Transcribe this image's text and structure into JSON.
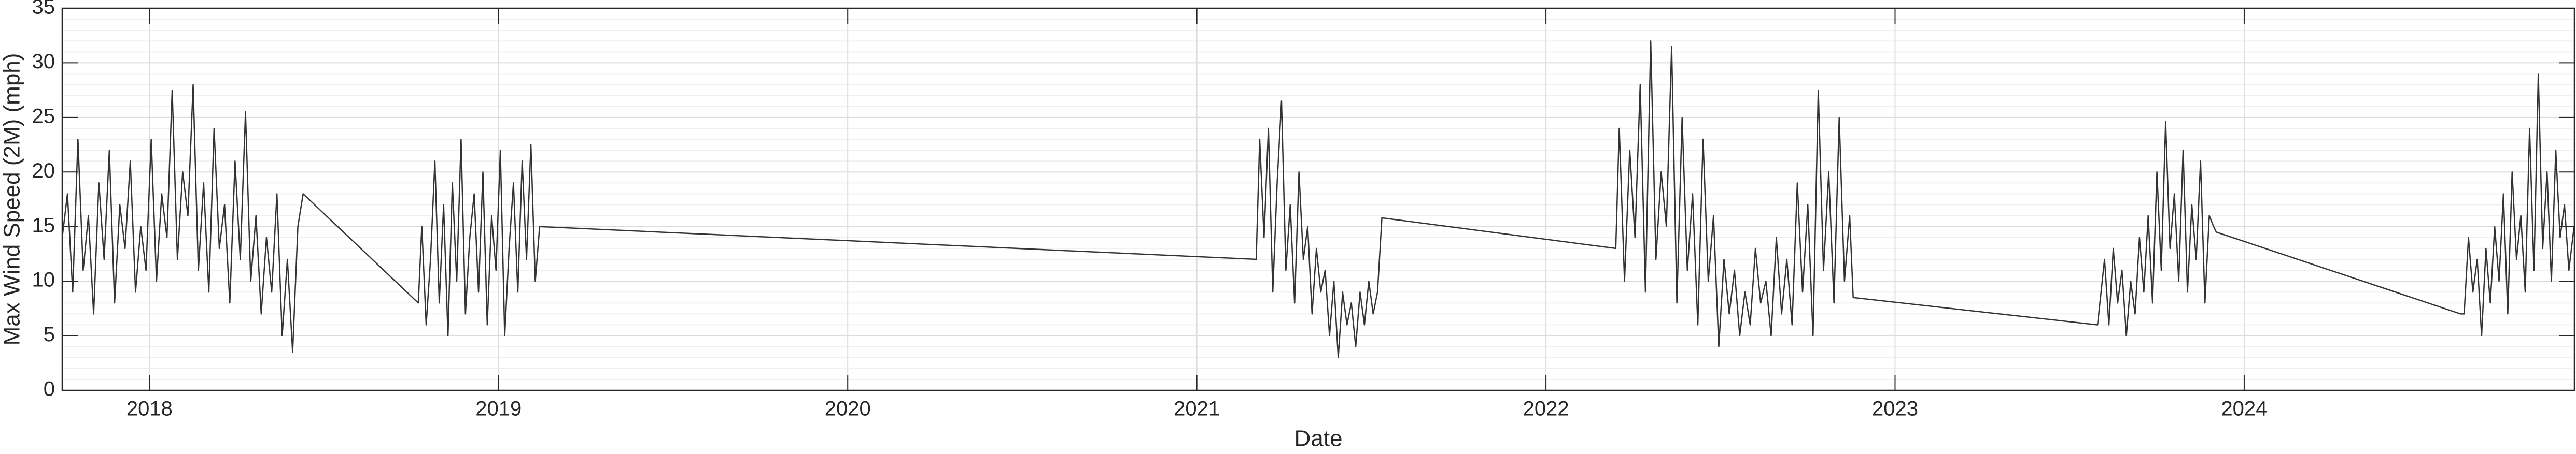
{
  "chart_data": {
    "type": "line",
    "xlabel": "Date",
    "ylabel": "Max Wind Speed (2M) (mph)",
    "color": "#333333",
    "x": [
      2017.75,
      2017.765,
      2017.78,
      2017.795,
      2017.81,
      2017.825,
      2017.84,
      2017.855,
      2017.87,
      2017.885,
      2017.9,
      2017.915,
      2017.93,
      2017.945,
      2017.96,
      2017.975,
      2017.99,
      2018.005,
      2018.02,
      2018.035,
      2018.05,
      2018.065,
      2018.08,
      2018.095,
      2018.11,
      2018.125,
      2018.14,
      2018.155,
      2018.17,
      2018.185,
      2018.2,
      2018.215,
      2018.23,
      2018.245,
      2018.26,
      2018.275,
      2018.29,
      2018.305,
      2018.32,
      2018.335,
      2018.35,
      2018.365,
      2018.38,
      2018.395,
      2018.41,
      2018.425,
      2018.44,
      2018.77,
      2018.78,
      2018.7925,
      2018.805,
      2018.8175,
      2018.83,
      2018.8425,
      2018.855,
      2018.8675,
      2018.88,
      2018.8925,
      2018.905,
      2018.9175,
      2018.93,
      2018.9425,
      2018.955,
      2018.9675,
      2018.98,
      2018.9925,
      2019.005,
      2019.0175,
      2019.03,
      2019.0425,
      2019.055,
      2019.0675,
      2019.08,
      2019.0925,
      2019.105,
      2019.1175,
      2021.17,
      2021.18,
      2021.1925,
      2021.205,
      2021.2175,
      2021.23,
      2021.2425,
      2021.255,
      2021.2675,
      2021.28,
      2021.2925,
      2021.305,
      2021.3175,
      2021.33,
      2021.3425,
      2021.355,
      2021.3675,
      2021.38,
      2021.3925,
      2021.405,
      2021.4175,
      2021.43,
      2021.4425,
      2021.455,
      2021.4675,
      2021.48,
      2021.4925,
      2021.505,
      2021.5175,
      2021.53,
      2022.2,
      2022.21,
      2022.225,
      2022.24,
      2022.255,
      2022.27,
      2022.285,
      2022.3,
      2022.315,
      2022.33,
      2022.345,
      2022.36,
      2022.375,
      2022.39,
      2022.405,
      2022.42,
      2022.435,
      2022.45,
      2022.465,
      2022.48,
      2022.495,
      2022.51,
      2022.525,
      2022.54,
      2022.555,
      2022.57,
      2022.585,
      2022.6,
      2022.615,
      2022.63,
      2022.645,
      2022.66,
      2022.675,
      2022.69,
      2022.705,
      2022.72,
      2022.735,
      2022.75,
      2022.765,
      2022.78,
      2022.795,
      2022.81,
      2022.825,
      2022.84,
      2022.855,
      2022.87,
      2022.88,
      2023.58,
      2023.6,
      2023.6125,
      2023.625,
      2023.6375,
      2023.65,
      2023.6625,
      2023.675,
      2023.6875,
      2023.7,
      2023.7125,
      2023.725,
      2023.7375,
      2023.75,
      2023.7625,
      2023.775,
      2023.7875,
      2023.8,
      2023.8125,
      2023.825,
      2023.8375,
      2023.85,
      2023.8625,
      2023.875,
      2023.8875,
      2023.9,
      2023.9125,
      2023.92,
      2024.62,
      2024.63,
      2024.6425,
      2024.655,
      2024.6675,
      2024.68,
      2024.6925,
      2024.705,
      2024.7175,
      2024.73,
      2024.7425,
      2024.755,
      2024.7675,
      2024.78,
      2024.7925,
      2024.805,
      2024.8175,
      2024.83,
      2024.8425,
      2024.855,
      2024.8675,
      2024.88,
      2024.8925,
      2024.905,
      2024.9175,
      2024.93,
      2024.945
    ],
    "values": [
      14,
      18,
      9,
      23,
      11,
      16,
      7,
      19,
      12,
      22,
      8,
      17,
      13,
      21,
      9,
      15,
      11,
      23,
      10,
      18,
      14,
      27.5,
      12,
      20,
      16,
      28,
      11,
      19,
      9,
      24,
      13,
      17,
      8,
      21,
      12,
      25.5,
      10,
      16,
      7,
      14,
      9,
      18,
      5,
      12,
      3.5,
      15,
      18,
      8,
      15,
      6,
      12,
      21,
      8,
      17,
      5,
      19,
      10,
      23,
      7,
      14,
      18,
      9,
      20,
      6,
      16,
      11,
      22,
      5,
      13,
      19,
      9,
      21,
      12,
      22.5,
      10,
      15,
      12,
      23,
      14,
      24,
      9,
      19,
      26.5,
      11,
      17,
      8,
      20,
      12,
      15,
      7,
      13,
      9,
      11,
      5,
      10,
      3,
      9,
      6,
      8,
      4,
      9,
      6,
      10,
      7,
      9,
      15.8,
      13,
      24,
      10,
      22,
      14,
      28,
      9,
      32,
      12,
      20,
      15,
      31.5,
      8,
      25,
      11,
      18,
      6,
      23,
      10,
      16,
      4,
      12,
      7,
      11,
      5,
      9,
      6,
      13,
      8,
      10,
      5,
      14,
      7,
      12,
      6,
      19,
      9,
      17,
      5,
      27.5,
      11,
      20,
      8,
      25,
      10,
      16,
      8.5,
      6,
      12,
      6,
      13,
      8,
      11,
      5,
      10,
      7,
      14,
      9,
      16,
      8,
      20,
      11,
      24.6,
      13,
      18,
      10,
      22,
      9,
      17,
      12,
      21,
      8,
      16,
      15,
      14.5,
      7,
      7,
      14,
      9,
      12,
      5,
      13,
      8,
      15,
      10,
      18,
      7,
      20,
      12,
      16,
      9,
      24,
      11,
      29,
      13,
      20,
      10,
      22,
      14,
      17,
      11,
      15
    ],
    "xlim": [
      2017.75,
      2024.946
    ],
    "ylim": [
      0,
      35
    ],
    "xticks": [
      2018,
      2019,
      2020,
      2021,
      2022,
      2023,
      2024
    ],
    "yticks": [
      0,
      5,
      10,
      15,
      20,
      25,
      30,
      35
    ],
    "yminorticks": [
      1,
      2,
      3,
      4,
      6,
      7,
      8,
      9,
      11,
      12,
      13,
      14,
      16,
      17,
      18,
      19,
      21,
      22,
      23,
      24,
      26,
      27,
      28,
      29,
      31,
      32,
      33,
      34
    ],
    "grid": true
  }
}
